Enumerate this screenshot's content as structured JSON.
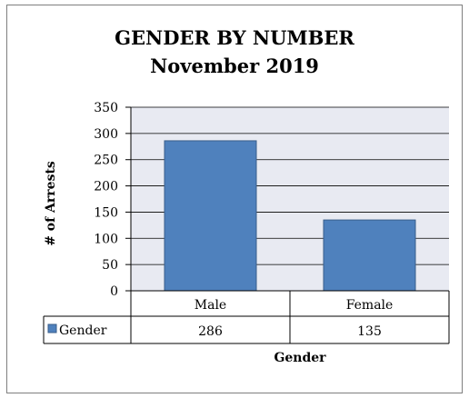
{
  "chart_data": {
    "type": "bar",
    "title": "GENDER BY NUMBER",
    "subtitle": "November 2019",
    "xlabel": "Gender",
    "ylabel": "# of Arrests",
    "categories": [
      "Male",
      "Female"
    ],
    "series": [
      {
        "name": "Gender",
        "values": [
          286,
          135
        ],
        "color": "#4f81bd"
      }
    ],
    "ylim": [
      0,
      350
    ],
    "yticks": [
      0,
      50,
      100,
      150,
      200,
      250,
      300,
      350
    ],
    "grid": true,
    "legend": "data-table",
    "plot_background": "#e8eaf2"
  }
}
